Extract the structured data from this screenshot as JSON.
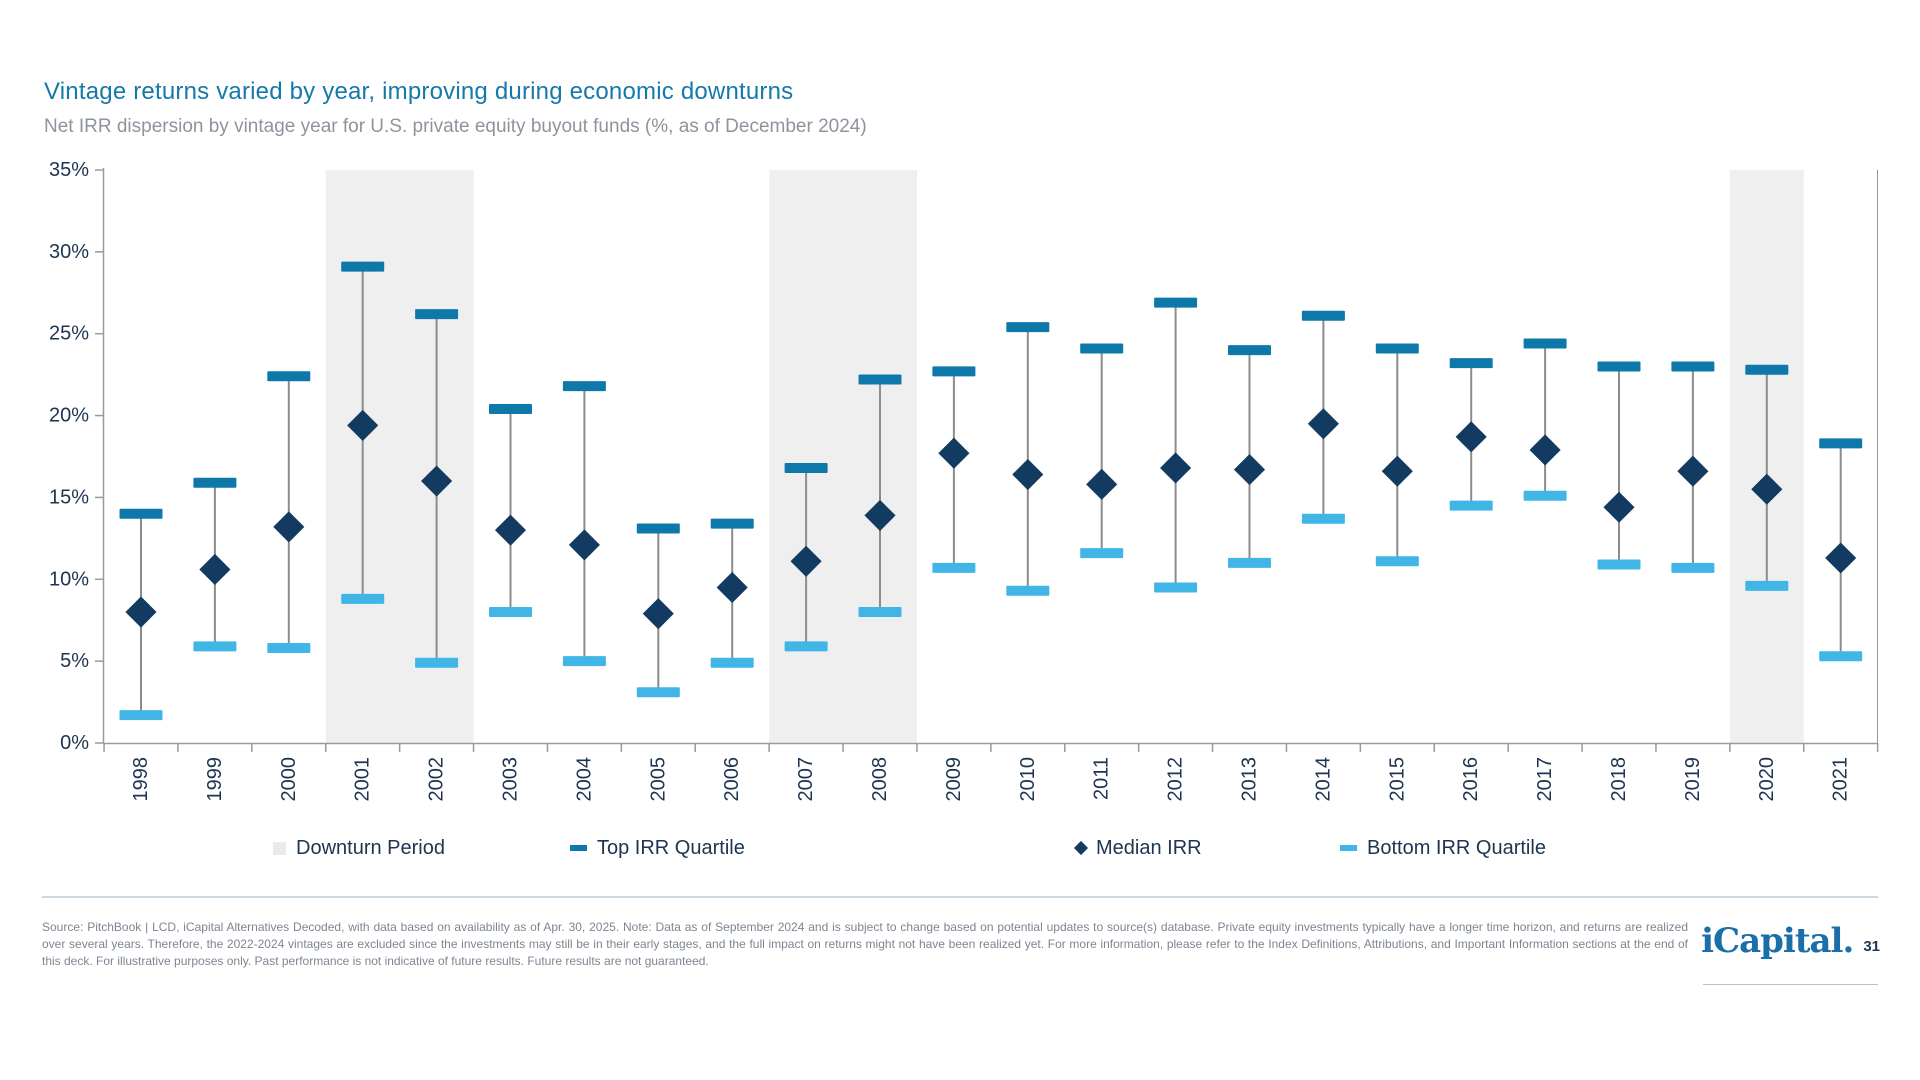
{
  "page": {
    "title": "Vintage returns varied by year, improving during economic downturns",
    "subtitle": "Net IRR dispersion by vintage year for U.S. private equity buyout funds (%, as of December 2024)",
    "footer": {
      "disclaimer": "Source: PitchBook | LCD, iCapital Alternatives Decoded, with data based on availability as of Apr. 30, 2025. Note: Data as of September 2024 and is subject to change based on potential updates to source(s) database. Private equity investments typically have a longer time horizon, and returns are realized over several years. Therefore, the 2022-2024 vintages are excluded since the investments may still be in their early stages, and the full impact on returns might not have been realized yet. For more information, please refer to the Index Definitions, Attributions, and Important Information sections at the end of this deck. For illustrative purposes only. Past performance is not indicative of future results. Future results are not guaranteed.",
      "logo_text": "iCapital.",
      "page_number": "31"
    }
  },
  "legend": {
    "items": [
      {
        "label": "Downturn Period",
        "marker": "square"
      },
      {
        "label": "Top IRR Quartile",
        "marker": "dash-dark"
      },
      {
        "label": "Median IRR",
        "marker": "diamond"
      },
      {
        "label": "Bottom IRR Quartile",
        "marker": "dash-light"
      }
    ]
  },
  "colors": {
    "title": "#1579AB",
    "subtitle": "#8D949E",
    "axis_text": "#1E3450",
    "top_quartile": "#0F78AB",
    "median": "#133A61",
    "bottom_quartile": "#41B6E6",
    "downturn_band": "#EFEFEF",
    "stem": "#8C8C8C",
    "axis_line": "#9A9A9A",
    "divider": "#CBD8E0",
    "footer_text": "#7C8692",
    "logo": "#1B6FA9"
  },
  "chart_data": {
    "type": "scatter",
    "variant": "quartile-dispersion-range",
    "title": "Vintage returns varied by year, improving during economic downturns",
    "subtitle": "Net IRR dispersion by vintage year for U.S. private equity buyout funds (%, as of December 2024)",
    "categories": [
      "1998",
      "1999",
      "2000",
      "2001",
      "2002",
      "2003",
      "2004",
      "2005",
      "2006",
      "2007",
      "2008",
      "2009",
      "2010",
      "2011",
      "2012",
      "2013",
      "2014",
      "2015",
      "2016",
      "2017",
      "2018",
      "2019",
      "2020",
      "2021"
    ],
    "series": [
      {
        "name": "Top IRR Quartile",
        "values": [
          14.0,
          15.9,
          22.4,
          29.1,
          26.2,
          20.4,
          21.8,
          13.1,
          13.4,
          16.8,
          22.2,
          22.7,
          25.4,
          24.1,
          26.9,
          24.0,
          26.1,
          24.1,
          23.2,
          24.4,
          23.0,
          23.0,
          22.8,
          18.3
        ]
      },
      {
        "name": "Median IRR",
        "values": [
          8.0,
          10.6,
          13.2,
          19.4,
          16.0,
          13.0,
          12.1,
          7.9,
          9.5,
          11.1,
          13.9,
          17.7,
          16.4,
          15.8,
          16.8,
          16.7,
          19.5,
          16.6,
          18.7,
          17.9,
          14.4,
          16.6,
          15.5,
          11.3
        ]
      },
      {
        "name": "Bottom IRR Quartile",
        "values": [
          1.7,
          5.9,
          5.8,
          8.8,
          4.9,
          8.0,
          5.0,
          3.1,
          4.9,
          5.9,
          8.0,
          10.7,
          9.3,
          11.6,
          9.5,
          11.0,
          13.7,
          11.1,
          14.5,
          15.1,
          10.9,
          10.7,
          9.6,
          5.3
        ]
      }
    ],
    "downturn_years": [
      "2001",
      "2002",
      "2007",
      "2008",
      "2020"
    ],
    "ylim": [
      0,
      35
    ],
    "ytick_step": 5,
    "ytick_suffix": "%",
    "grid": false,
    "legend_position": "bottom"
  }
}
